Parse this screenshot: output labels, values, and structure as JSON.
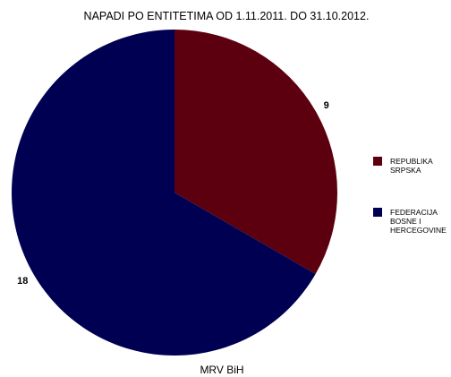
{
  "chart_data": {
    "type": "pie",
    "title": "NAPADI PO ENTITETIMA OD 1.11.2011. DO 31.10.2012.",
    "caption": "MRV BiH",
    "legend_position": "right",
    "start_angle_deg": 0,
    "direction": "clockwise",
    "slices": [
      {
        "name": [
          "REPUBLIKA",
          "SRPSKA"
        ],
        "value": 9,
        "label": "9",
        "color": "#5c0010"
      },
      {
        "name": [
          "FEDERACIJA",
          "BOSNE I",
          "HERCEGOVINE"
        ],
        "value": 18,
        "label": "18",
        "color": "#000052"
      }
    ]
  }
}
